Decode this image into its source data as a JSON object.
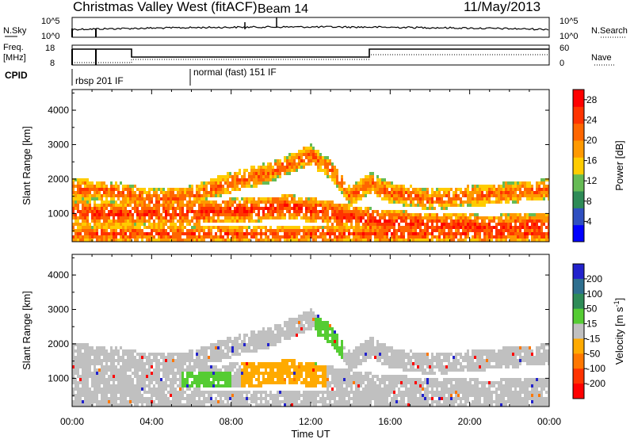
{
  "header": {
    "title": "Christmas Valley West (fitACF)",
    "beam": "Beam 14",
    "date": "11/May/2013"
  },
  "strips": {
    "nsky": {
      "left_label": "N.Sky",
      "right_label": "N.Search",
      "tick_top": "10^5",
      "tick_bottom": "10^0"
    },
    "freq": {
      "left_label_line1": "Freq.",
      "left_label_line2": "[MHz]",
      "right_label": "Nave",
      "left_ticks": [
        "18",
        "8"
      ],
      "right_ticks": [
        "60",
        "0"
      ]
    },
    "cpid": {
      "label": "CPID",
      "segments": [
        "rbsp 201 IF",
        "normal (fast) 151 IF"
      ]
    }
  },
  "colors": {
    "power": [
      "#0000ff",
      "#2f4fc0",
      "#2e8b57",
      "#66bb55",
      "#ffcc00",
      "#ff9900",
      "#ff6600",
      "#ff3300",
      "#ff0000"
    ],
    "velocity": [
      "#2222cc",
      "#2e6f8f",
      "#2e8b57",
      "#55cc33",
      "#c0c0c0",
      "#ffaa00",
      "#ff7700",
      "#ff3300",
      "#ff0000"
    ]
  },
  "chart_data": [
    {
      "type": "heatmap",
      "name": "power",
      "xlabel": "Time UT",
      "ylabel": "Slant Range [km]",
      "xlim": [
        0,
        24
      ],
      "ylim": [
        180,
        4600
      ],
      "xticks": [
        "00:00",
        "04:00",
        "08:00",
        "12:00",
        "16:00",
        "20:00",
        "00:00"
      ],
      "yticks": [
        1000,
        2000,
        3000,
        4000
      ],
      "colorbar": {
        "label": "Power [dB]",
        "ticks": [
          4,
          8,
          12,
          16,
          20,
          24,
          28
        ],
        "range": [
          0,
          30
        ]
      },
      "bands": [
        {
          "x": [
            0,
            2,
            4,
            6,
            8,
            10,
            12,
            13,
            14,
            15,
            16,
            18,
            20,
            22,
            24
          ],
          "y": [
            1700,
            1650,
            1400,
            1500,
            1900,
            2200,
            2700,
            2300,
            1500,
            1900,
            1600,
            1400,
            1500,
            1600,
            1700
          ],
          "width": 300,
          "power": 24
        },
        {
          "x": [
            3,
            5,
            7,
            9,
            11,
            13,
            15,
            17,
            19,
            21,
            23,
            24
          ],
          "y": [
            1000,
            1000,
            1050,
            1100,
            1200,
            1000,
            800,
            700,
            650,
            600,
            650,
            650
          ],
          "width": 350,
          "power": 28
        },
        {
          "x": [
            0,
            4,
            8,
            12,
            16,
            20,
            24
          ],
          "y": [
            400,
            400,
            400,
            400,
            400,
            400,
            400
          ],
          "width": 250,
          "power": 26
        }
      ]
    },
    {
      "type": "heatmap",
      "name": "velocity",
      "xlabel": "Time UT",
      "ylabel": "Slant Range [km]",
      "xlim": [
        0,
        24
      ],
      "ylim": [
        180,
        4600
      ],
      "xticks": [
        "00:00",
        "04:00",
        "08:00",
        "12:00",
        "16:00",
        "20:00",
        "00:00"
      ],
      "yticks": [
        1000,
        2000,
        3000,
        4000
      ],
      "colorbar": {
        "label": "Velocity [m s^-1]",
        "ticks": [
          200,
          100,
          50,
          15,
          -15,
          -50,
          -100,
          -200
        ]
      },
      "regions": [
        {
          "x": [
            0,
            24
          ],
          "y": [
            200,
            2300
          ],
          "velocity": 0
        },
        {
          "x": [
            5.5,
            8.0
          ],
          "y": [
            700,
            1200
          ],
          "velocity": 40
        },
        {
          "x": [
            8.5,
            12.8
          ],
          "y": [
            600,
            1600
          ],
          "velocity": -40
        },
        {
          "x": [
            12.2,
            13.6
          ],
          "y": [
            1400,
            2800
          ],
          "velocity": 40
        }
      ]
    }
  ]
}
